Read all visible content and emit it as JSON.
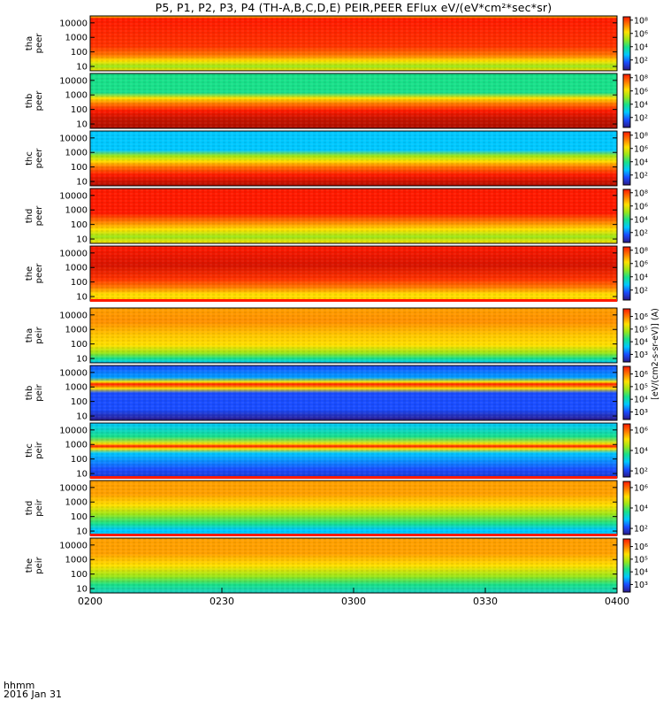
{
  "title": "P5, P1, P2, P3, P4 (TH-A,B,C,D,E) PEIR,PEER EFlux eV/(eV*cm²*sec*sr)",
  "footer": {
    "time_label": "hhmm",
    "date_label": "2016 Jan 31"
  },
  "colors": {
    "colormap": [
      "#2b1a8a",
      "#1a4dff",
      "#00c8ff",
      "#19e08a",
      "#9ae61a",
      "#ffe000",
      "#ff7a00",
      "#ff1a00"
    ],
    "frame": "#000000",
    "background": "#ffffff"
  },
  "chart_data": {
    "type": "heatmap",
    "xaxis": {
      "ticks": [
        "0200",
        "0230",
        "0300",
        "0330",
        "0400"
      ],
      "tick_minutes": [
        0,
        30,
        60,
        90,
        120
      ],
      "range_minutes": [
        0,
        120
      ]
    },
    "yaxis": {
      "scale": "log",
      "unit": "eV",
      "ticks": [
        "10",
        "100",
        "1000",
        "10000"
      ],
      "range": [
        5,
        30000
      ]
    },
    "colorbar_label": "[eV/(cm2-s-sr-eV)] (A)",
    "panels": [
      {
        "probe": "tha",
        "species": "peer",
        "label": [
          "tha",
          "peer"
        ],
        "cbar_ticks": [
          "10²",
          "10⁴",
          "10⁶",
          "10⁸"
        ],
        "cbar_exp": [
          2,
          4,
          6,
          8
        ],
        "cbar_range": [
          0.5,
          8.5
        ]
      },
      {
        "probe": "thb",
        "species": "peer",
        "label": [
          "thb",
          "peer"
        ],
        "cbar_ticks": [
          "10²",
          "10⁴",
          "10⁶",
          "10⁸"
        ],
        "cbar_exp": [
          2,
          4,
          6,
          8
        ],
        "cbar_range": [
          0.5,
          8.5
        ]
      },
      {
        "probe": "thc",
        "species": "peer",
        "label": [
          "thc",
          "peer"
        ],
        "cbar_ticks": [
          "10²",
          "10⁴",
          "10⁶",
          "10⁸"
        ],
        "cbar_exp": [
          2,
          4,
          6,
          8
        ],
        "cbar_range": [
          0.5,
          8.5
        ]
      },
      {
        "probe": "thd",
        "species": "peer",
        "label": [
          "thd",
          "peer"
        ],
        "cbar_ticks": [
          "10²",
          "10⁴",
          "10⁶",
          "10⁸"
        ],
        "cbar_exp": [
          2,
          4,
          6,
          8
        ],
        "cbar_range": [
          0.5,
          8.5
        ]
      },
      {
        "probe": "the",
        "species": "peer",
        "label": [
          "the",
          "peer"
        ],
        "cbar_ticks": [
          "10²",
          "10⁴",
          "10⁶",
          "10⁸"
        ],
        "cbar_exp": [
          2,
          4,
          6,
          8
        ],
        "cbar_range": [
          0.5,
          8.5
        ]
      },
      {
        "probe": "tha",
        "species": "peir",
        "label": [
          "tha",
          "peir"
        ],
        "cbar_ticks": [
          "10³",
          "10⁴",
          "10⁵",
          "10⁶"
        ],
        "cbar_exp": [
          3,
          4,
          5,
          6
        ],
        "cbar_range": [
          2.4,
          6.6
        ]
      },
      {
        "probe": "thb",
        "species": "peir",
        "label": [
          "thb",
          "peir"
        ],
        "cbar_ticks": [
          "10³",
          "10⁴",
          "10⁵",
          "10⁶"
        ],
        "cbar_exp": [
          3,
          4,
          5,
          6
        ],
        "cbar_range": [
          2.4,
          6.6
        ]
      },
      {
        "probe": "thc",
        "species": "peir",
        "label": [
          "thc",
          "peir"
        ],
        "cbar_ticks": [
          "10²",
          "10⁴",
          "10⁶"
        ],
        "cbar_exp": [
          2,
          4,
          6
        ],
        "cbar_range": [
          1.4,
          6.6
        ]
      },
      {
        "probe": "thd",
        "species": "peir",
        "label": [
          "thd",
          "peir"
        ],
        "cbar_ticks": [
          "10²",
          "10⁴",
          "10⁶"
        ],
        "cbar_exp": [
          2,
          4,
          6
        ],
        "cbar_range": [
          1.4,
          6.6
        ]
      },
      {
        "probe": "the",
        "species": "peir",
        "label": [
          "the",
          "peir"
        ],
        "cbar_ticks": [
          "10³",
          "10⁴",
          "10⁵",
          "10⁶"
        ],
        "cbar_exp": [
          3,
          4,
          5,
          6
        ],
        "cbar_range": [
          2.4,
          6.6
        ]
      }
    ]
  }
}
